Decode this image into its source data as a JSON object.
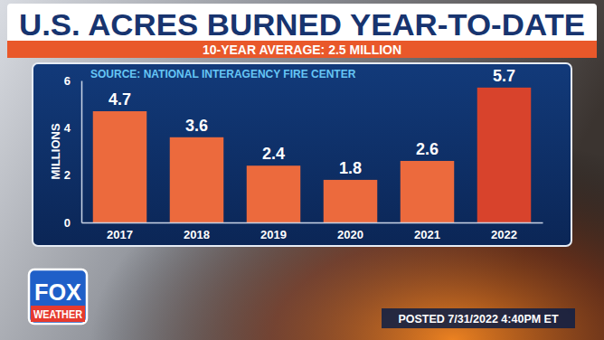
{
  "chart_data": {
    "type": "bar",
    "title": "U.S. ACRES BURNED YEAR-TO-DATE",
    "subtitle": "10-YEAR AVERAGE: 2.5 MILLION",
    "source": "SOURCE: NATIONAL INTERAGENCY FIRE CENTER",
    "y_label": "MILLIONS",
    "categories": [
      "2017",
      "2018",
      "2019",
      "2020",
      "2021",
      "2022"
    ],
    "values": [
      4.7,
      3.6,
      2.4,
      1.8,
      2.6,
      5.7
    ],
    "colors": [
      "#ec6a3d",
      "#ec6a3d",
      "#ec6a3d",
      "#ec6a3d",
      "#ec6a3d",
      "#d8432c"
    ],
    "ylim": [
      0,
      6
    ],
    "yticks": [
      0,
      2,
      4,
      6
    ],
    "data_labels": true,
    "annotations": [
      "FOX",
      "WEATHER",
      "POSTED 7/31/2022 4:40PM ET"
    ]
  }
}
